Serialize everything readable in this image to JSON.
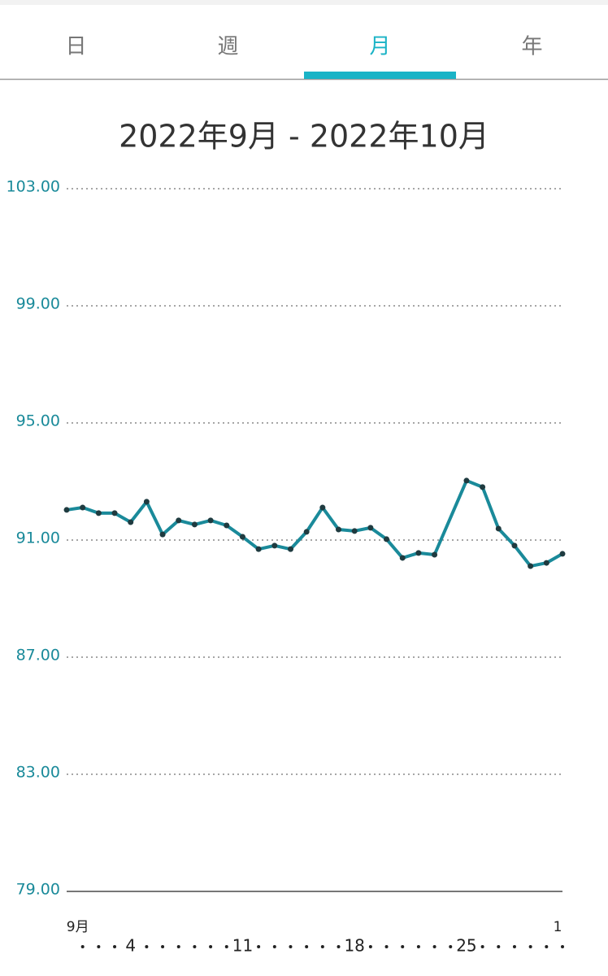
{
  "tabs": [
    "日",
    "週",
    "月",
    "年"
  ],
  "active_tab": 2,
  "chart_data": {
    "type": "line",
    "title": "2022年9月 - 2022年10月",
    "x": [
      0,
      1,
      2,
      3,
      4,
      5,
      6,
      7,
      8,
      9,
      10,
      11,
      12,
      13,
      14,
      15,
      16,
      17,
      18,
      19,
      20,
      21,
      22,
      23,
      25,
      26,
      27,
      28,
      29,
      30,
      31
    ],
    "series": [
      {
        "color": "#1a8a9a",
        "values": [
          92.03,
          92.11,
          91.92,
          91.92,
          91.61,
          92.31,
          91.19,
          91.67,
          91.53,
          91.67,
          91.5,
          91.11,
          90.69,
          90.81,
          90.69,
          91.28,
          92.11,
          91.36,
          91.31,
          91.42,
          91.03,
          90.39,
          90.56,
          90.5,
          93.03,
          92.81,
          91.39,
          90.81,
          90.11,
          90.22,
          90.53
        ]
      }
    ],
    "xlim": [
      0,
      31
    ],
    "xticks": [
      4,
      11,
      18,
      25
    ],
    "month_labels": [
      {
        "value": 1,
        "label": "9月"
      },
      {
        "value": 31,
        "label": "1"
      }
    ],
    "ylim": [
      79,
      103
    ],
    "yticks": [
      {
        "value": 79,
        "label": "79.00"
      },
      {
        "value": 83,
        "label": "83.00"
      },
      {
        "value": 87,
        "label": "87.00"
      },
      {
        "value": 91,
        "label": "91.00"
      },
      {
        "value": 95,
        "label": "95.00"
      },
      {
        "value": 99,
        "label": "99.00"
      },
      {
        "value": 103,
        "label": "103.00"
      }
    ],
    "grid": true
  }
}
